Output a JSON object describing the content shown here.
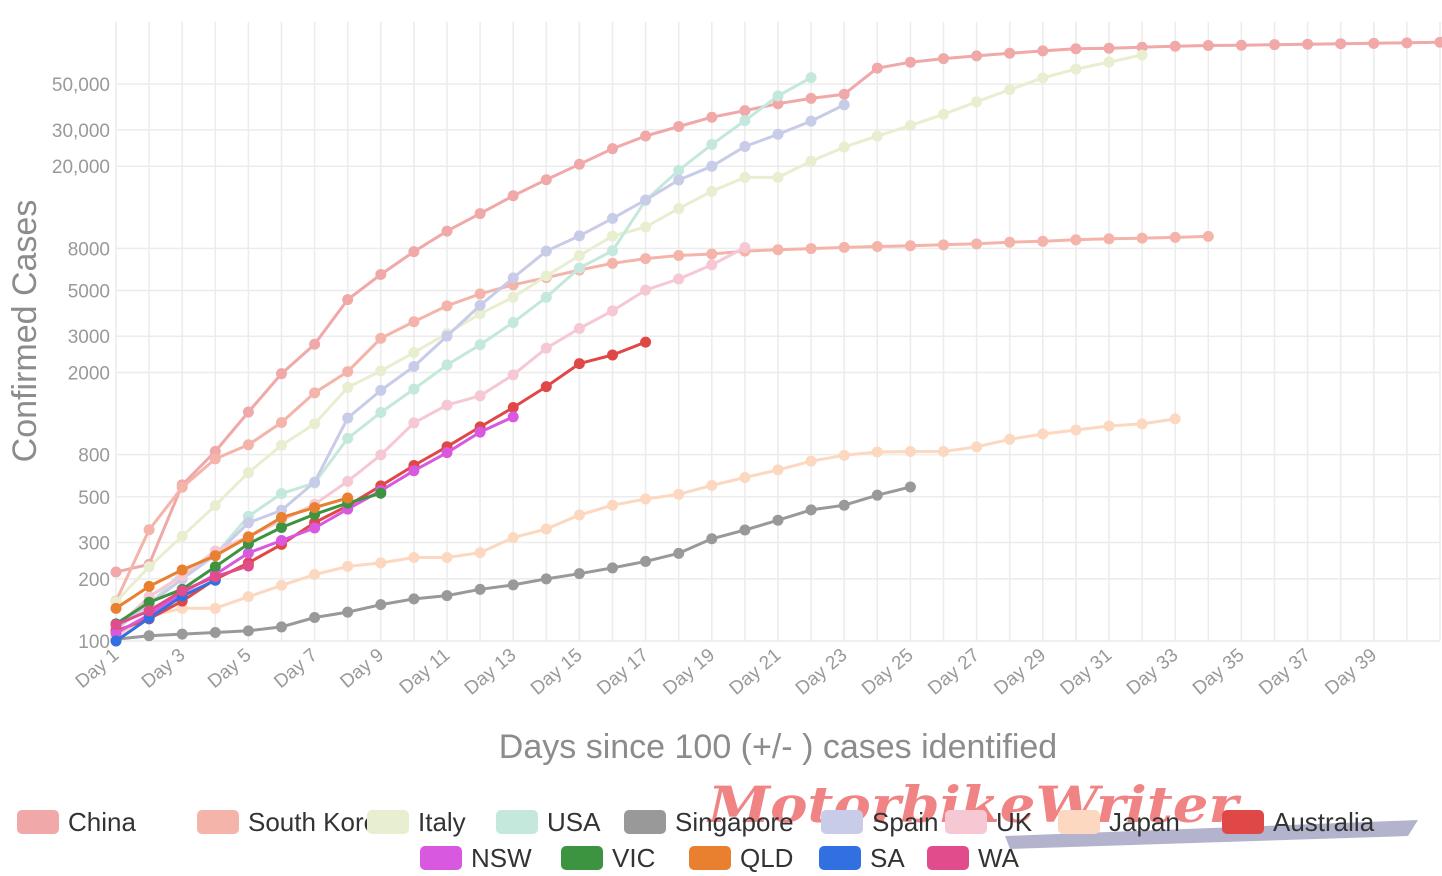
{
  "chart_data": {
    "type": "line",
    "xlabel": "Days since 100 (+/- ) cases identified",
    "ylabel": "Confirmed Cases",
    "y_scale": "log",
    "xlim": [
      1,
      41
    ],
    "ylim": [
      100,
      100000
    ],
    "grid": true,
    "legend_position": "bottom",
    "x_tick_labels": [
      "Day 1",
      "Day 3",
      "Day 5",
      "Day 7",
      "Day 9",
      "Day 11",
      "Day 13",
      "Day 15",
      "Day 17",
      "Day 19",
      "Day 21",
      "Day 23",
      "Day 25",
      "Day 27",
      "Day 29",
      "Day 31",
      "Day 33",
      "Day 35",
      "Day 37",
      "Day 39"
    ],
    "y_tick_labels": [
      "100",
      "200",
      "300",
      "500",
      "800",
      "2000",
      "3000",
      "5000",
      "8000",
      "20,000",
      "30,000",
      "50,000"
    ],
    "y_tick_values": [
      100,
      200,
      300,
      500,
      800,
      2000,
      3000,
      5000,
      8000,
      20000,
      30000,
      50000
    ],
    "series": [
      {
        "name": "China",
        "color": "#f0a8a8",
        "values": [
          216,
          235,
          571,
          830,
          1287,
          1975,
          2744,
          4515,
          5974,
          7711,
          9692,
          11791,
          14380,
          17205,
          20438,
          24324,
          28018,
          31161,
          34546,
          37198,
          40171,
          42638,
          44653,
          59804,
          63851,
          66492,
          68500,
          70548,
          72436,
          74185,
          74576,
          75465,
          76288,
          76936,
          77150,
          77658,
          78064,
          78497,
          78824,
          79251,
          79824
        ]
      },
      {
        "name": "South Korea",
        "color": "#f4b4aa",
        "values": [
          156,
          346,
          556,
          763,
          893,
          1146,
          1595,
          2022,
          2931,
          3526,
          4212,
          4812,
          5328,
          5766,
          6284,
          6767,
          7134,
          7382,
          7513,
          7755,
          7869,
          7979,
          8086,
          8162,
          8236,
          8320,
          8413,
          8565,
          8652,
          8799,
          8897,
          8961,
          9037,
          9137
        ]
      },
      {
        "name": "Italy",
        "color": "#e8eed0",
        "values": [
          155,
          229,
          322,
          453,
          655,
          888,
          1128,
          1694,
          2036,
          2502,
          3089,
          3858,
          4636,
          5883,
          7375,
          9172,
          10149,
          12462,
          15113,
          17660,
          17660,
          21157,
          24747,
          27980,
          31506,
          35713,
          41035,
          47021,
          53578,
          59138,
          63927,
          69176
        ]
      },
      {
        "name": "USA",
        "color": "#c4e8dc",
        "values": [
          118,
          149,
          217,
          262,
          402,
          518,
          583,
          959,
          1281,
          1663,
          2179,
          2727,
          3499,
          4632,
          6421,
          7786,
          13680,
          19101,
          25493,
          33276,
          43847,
          53740
        ]
      },
      {
        "name": "Singapore",
        "color": "#999999",
        "values": [
          102,
          106,
          108,
          110,
          112,
          117,
          130,
          138,
          150,
          160,
          166,
          178,
          187,
          200,
          212,
          226,
          243,
          266,
          313,
          345,
          385,
          432,
          455,
          509,
          558
        ]
      },
      {
        "name": "Spain",
        "color": "#c8cce8",
        "values": [
          114,
          151,
          200,
          261,
          374,
          430,
          589,
          1204,
          1639,
          2140,
          3004,
          4231,
          5753,
          7753,
          9191,
          11178,
          13716,
          17147,
          19980,
          24926,
          28572,
          33089,
          39673
        ]
      },
      {
        "name": "UK",
        "color": "#f6c8d4",
        "values": [
          116,
          164,
          207,
          273,
          321,
          383,
          460,
          594,
          798,
          1140,
          1391,
          1543,
          1950,
          2626,
          3269,
          3983,
          5018,
          5683,
          6650,
          8077
        ]
      },
      {
        "name": "Japan",
        "color": "#fcd8c0",
        "values": [
          105,
          132,
          144,
          144,
          164,
          186,
          210,
          230,
          239,
          254,
          254,
          268,
          317,
          349,
          408,
          455,
          488,
          514,
          568,
          620,
          675,
          744,
          794,
          824,
          829,
          829,
          873,
          950,
          1007,
          1054,
          1101,
          1128,
          1193
        ]
      },
      {
        "name": "Australia",
        "color": "#e04848",
        "values": [
          112,
          128,
          156,
          199,
          239,
          294,
          375,
          452,
          565,
          709,
          874,
          1091,
          1354,
          1709,
          2209,
          2432,
          2810
        ]
      },
      {
        "name": "NSW",
        "color": "#d858e0",
        "values": [
          109,
          134,
          171,
          210,
          267,
          307,
          353,
          436,
          535,
          669,
          818,
          1029,
          1219
        ]
      },
      {
        "name": "VIC",
        "color": "#3c9440",
        "values": [
          121,
          154,
          178,
          229,
          296,
          355,
          411,
          466,
          520
        ]
      },
      {
        "name": "QLD",
        "color": "#e88030",
        "values": [
          144,
          184,
          221,
          259,
          319,
          397,
          443,
          493
        ]
      },
      {
        "name": "SA",
        "color": "#3070e0",
        "values": [
          100,
          129,
          165,
          197
        ]
      },
      {
        "name": "WA",
        "color": "#e04c8c",
        "values": [
          120,
          140,
          175,
          205,
          231
        ]
      }
    ]
  },
  "legend_row1": [
    "China",
    "South Korea",
    "Italy",
    "USA",
    "Singapore",
    "Spain",
    "UK",
    "Japan",
    "Australia"
  ],
  "legend_row2": [
    "NSW",
    "VIC",
    "QLD",
    "SA",
    "WA"
  ],
  "watermark": "MotorbikeWriter"
}
